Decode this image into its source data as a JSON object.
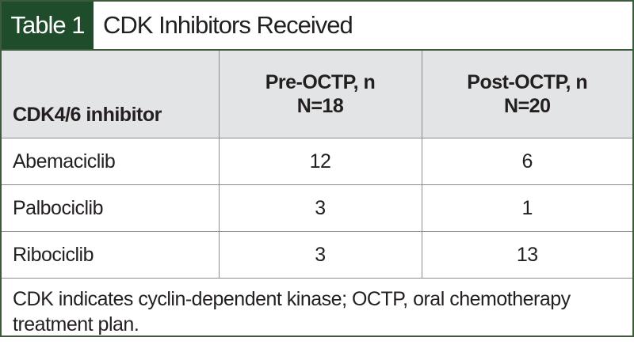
{
  "header": {
    "label": "Table 1",
    "title": "CDK Inhibitors Received"
  },
  "table": {
    "columns": [
      [
        "CDK4/6 inhibitor"
      ],
      [
        "Pre-OCTP, n",
        "N=18"
      ],
      [
        "Post-OCTP, n",
        "N=20"
      ]
    ],
    "rows": [
      [
        "Abemaciclib",
        "12",
        "6"
      ],
      [
        "Palbociclib",
        "3",
        "1"
      ],
      [
        "Ribociclib",
        "3",
        "13"
      ]
    ]
  },
  "footnote": "CDK indicates cyclin-dependent kinase; OCTP, oral chemotherapy treatment plan."
}
